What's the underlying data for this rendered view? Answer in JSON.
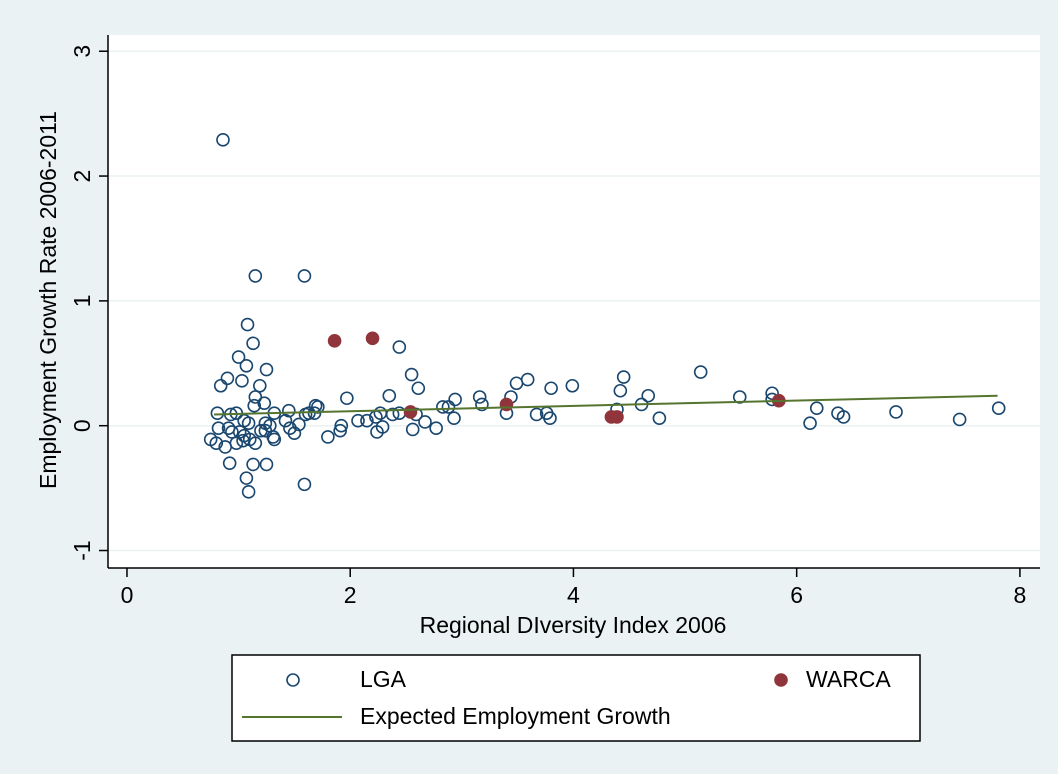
{
  "chart_data": {
    "type": "scatter",
    "x_label": "Regional DIversity Index 2006",
    "y_label": "Employment Growth Rate 2006-2011",
    "xlim": [
      -0.17,
      8.18
    ],
    "xticks": [
      0,
      2,
      4,
      6,
      8
    ],
    "ylim": [
      -1.14,
      3.13
    ],
    "yticks": [
      -1,
      0,
      1,
      2,
      3
    ],
    "grid": true,
    "legend": "bottom",
    "series": [
      {
        "name": "LGA",
        "color": "#1a476f",
        "marker": "hollow",
        "x": [
          0.86,
          1.15,
          1.59,
          1.08,
          1.13,
          2.44,
          1.0,
          1.07,
          1.25,
          0.9,
          1.03,
          1.19,
          0.84,
          2.55,
          2.61,
          2.35,
          1.97,
          1.15,
          1.23,
          1.14,
          1.45,
          1.68,
          1.71,
          1.69,
          1.6,
          0.81,
          0.93,
          0.98,
          1.32,
          1.05,
          1.09,
          1.24,
          1.28,
          0.82,
          0.91,
          0.94,
          1.01,
          1.05,
          1.1,
          1.15,
          0.75,
          0.8,
          0.88,
          0.98,
          1.04,
          1.24,
          1.31,
          1.32,
          1.42,
          1.46,
          1.5,
          1.54,
          1.63,
          1.8,
          1.92,
          1.91,
          2.07,
          2.15,
          2.23,
          2.27,
          2.24,
          2.29,
          2.38,
          2.44,
          2.56,
          2.59,
          2.67,
          2.77,
          2.83,
          2.88,
          2.94,
          2.93,
          3.16,
          3.18,
          3.4,
          3.44,
          3.49,
          3.59,
          3.67,
          3.76,
          3.79,
          3.8,
          3.99,
          4.39,
          4.42,
          4.45,
          4.61,
          4.67,
          4.77,
          5.14,
          5.49,
          5.78,
          5.78,
          6.12,
          6.18,
          6.37,
          6.42,
          6.89,
          7.46,
          7.81,
          0.92,
          1.13,
          1.25,
          1.07,
          1.09,
          1.59,
          1.2
        ],
        "values": [
          2.29,
          1.2,
          1.2,
          0.81,
          0.66,
          0.63,
          0.55,
          0.48,
          0.45,
          0.38,
          0.36,
          0.32,
          0.32,
          0.41,
          0.3,
          0.24,
          0.22,
          0.23,
          0.18,
          0.16,
          0.12,
          0.1,
          0.15,
          0.16,
          0.09,
          0.1,
          0.09,
          0.1,
          0.1,
          0.04,
          0.02,
          0.02,
          0.0,
          -0.02,
          -0.02,
          -0.05,
          -0.05,
          -0.08,
          -0.11,
          -0.14,
          -0.11,
          -0.14,
          -0.17,
          -0.14,
          -0.12,
          -0.04,
          -0.09,
          -0.11,
          0.04,
          -0.02,
          -0.06,
          0.01,
          0.1,
          -0.09,
          0.0,
          -0.04,
          0.04,
          0.04,
          0.07,
          0.1,
          -0.05,
          -0.01,
          0.09,
          0.1,
          -0.03,
          0.09,
          0.03,
          -0.02,
          0.15,
          0.15,
          0.21,
          0.06,
          0.23,
          0.17,
          0.1,
          0.23,
          0.34,
          0.37,
          0.09,
          0.1,
          0.06,
          0.3,
          0.32,
          0.13,
          0.28,
          0.39,
          0.17,
          0.24,
          0.06,
          0.43,
          0.23,
          0.26,
          0.21,
          0.02,
          0.14,
          0.1,
          0.07,
          0.11,
          0.05,
          0.14,
          -0.3,
          -0.31,
          -0.31,
          -0.42,
          -0.53,
          -0.47,
          -0.04
        ]
      },
      {
        "name": "WARCA",
        "color": "#90353b",
        "marker": "filled",
        "x": [
          1.86,
          2.2,
          2.54,
          3.4,
          4.34,
          4.39,
          5.84
        ],
        "values": [
          0.68,
          0.7,
          0.11,
          0.17,
          0.07,
          0.07,
          0.2
        ]
      },
      {
        "name": "Expected Employment Growth",
        "color": "#55752f",
        "type": "line",
        "x": [
          0.78,
          7.8
        ],
        "values": [
          0.09,
          0.24
        ]
      }
    ]
  }
}
